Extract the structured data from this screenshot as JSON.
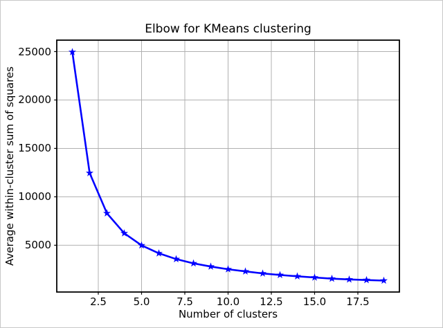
{
  "figure": {
    "background": "#ffffff",
    "border_color": "#c8c8c8"
  },
  "chart_data": {
    "type": "line",
    "title": "Elbow for KMeans clustering",
    "xlabel": "Number of clusters",
    "ylabel": "Average within-cluster sum of squares",
    "x": [
      1,
      2,
      3,
      4,
      5,
      6,
      7,
      8,
      9,
      10,
      11,
      12,
      13,
      14,
      15,
      16,
      17,
      18,
      19
    ],
    "y": [
      24950,
      12460,
      8300,
      6240,
      4990,
      4170,
      3570,
      3130,
      2800,
      2520,
      2300,
      2090,
      1930,
      1790,
      1670,
      1550,
      1470,
      1410,
      1350
    ],
    "xlim": [
      0.1,
      19.9
    ],
    "ylim": [
      170,
      26180
    ],
    "xticks": {
      "values": [
        2.5,
        5.0,
        7.5,
        10.0,
        12.5,
        15.0,
        17.5
      ],
      "labels": [
        "2.5",
        "5.0",
        "7.5",
        "10.0",
        "12.5",
        "15.0",
        "17.5"
      ]
    },
    "yticks": {
      "values": [
        5000,
        10000,
        15000,
        20000,
        25000
      ],
      "labels": [
        "5000",
        "10000",
        "15000",
        "20000",
        "25000"
      ]
    },
    "grid": true,
    "grid_color": "#b0b0b0",
    "spine_color": "#000000",
    "line_color": "#0000ff",
    "marker": "star",
    "legend_position": "none"
  }
}
